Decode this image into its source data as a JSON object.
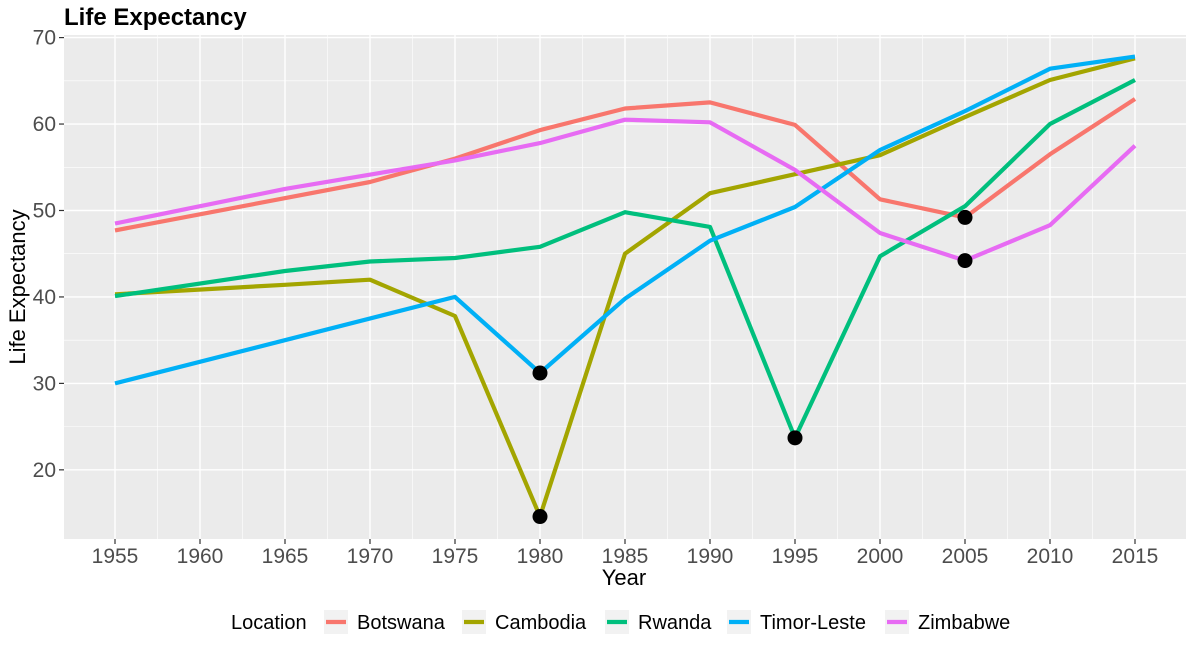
{
  "chart_data": {
    "type": "line",
    "title": "Life Expectancy",
    "xlabel": "Year",
    "ylabel": "Life Expectancy",
    "xlim": [
      1952,
      2018
    ],
    "ylim": [
      12,
      70.3
    ],
    "x_ticks": [
      1955,
      1960,
      1965,
      1970,
      1975,
      1980,
      1985,
      1990,
      1995,
      2000,
      2005,
      2010,
      2015
    ],
    "y_ticks": [
      20,
      30,
      40,
      50,
      60,
      70
    ],
    "grid": true,
    "legend": {
      "title": "Location",
      "position": "bottom"
    },
    "series": [
      {
        "name": "Botswana",
        "color": "#F8766D",
        "x": [
          1955,
          1970,
          1975,
          1980,
          1985,
          1990,
          1995,
          2000,
          2005,
          2010,
          2015
        ],
        "values": [
          47.7,
          53.3,
          56.0,
          59.3,
          61.8,
          62.5,
          59.9,
          51.3,
          49.2,
          56.5,
          62.9
        ]
      },
      {
        "name": "Cambodia",
        "color": "#A3A500",
        "x": [
          1955,
          1965,
          1970,
          1975,
          1980,
          1985,
          1990,
          1995,
          2000,
          2005,
          2010,
          2015
        ],
        "values": [
          40.3,
          41.4,
          42.0,
          37.8,
          14.6,
          45.0,
          52.0,
          54.2,
          56.4,
          60.8,
          65.1,
          67.6
        ]
      },
      {
        "name": "Rwanda",
        "color": "#00BF7D",
        "x": [
          1955,
          1965,
          1970,
          1975,
          1980,
          1985,
          1990,
          1995,
          2000,
          2005,
          2010,
          2015
        ],
        "values": [
          40.1,
          43.0,
          44.1,
          44.5,
          45.8,
          49.8,
          48.1,
          23.7,
          44.7,
          50.5,
          60.0,
          65.1
        ]
      },
      {
        "name": "Timor-Leste",
        "color": "#00B0F6",
        "x": [
          1955,
          1975,
          1980,
          1985,
          1990,
          1995,
          2000,
          2005,
          2010,
          2015
        ],
        "values": [
          30.0,
          40.0,
          31.2,
          39.8,
          46.5,
          50.4,
          57.0,
          61.5,
          66.4,
          67.8
        ]
      },
      {
        "name": "Zimbabwe",
        "color": "#E76BF3",
        "x": [
          1955,
          1965,
          1975,
          1980,
          1985,
          1990,
          1995,
          2000,
          2005,
          2010,
          2015
        ],
        "values": [
          48.5,
          52.5,
          55.8,
          57.8,
          60.5,
          60.2,
          54.7,
          47.4,
          44.2,
          48.3,
          57.5
        ]
      }
    ],
    "highlight_points": [
      {
        "x": 1980,
        "y": 31.2
      },
      {
        "x": 1980,
        "y": 14.6
      },
      {
        "x": 1995,
        "y": 23.7
      },
      {
        "x": 2005,
        "y": 49.2
      },
      {
        "x": 2005,
        "y": 44.2
      }
    ]
  }
}
